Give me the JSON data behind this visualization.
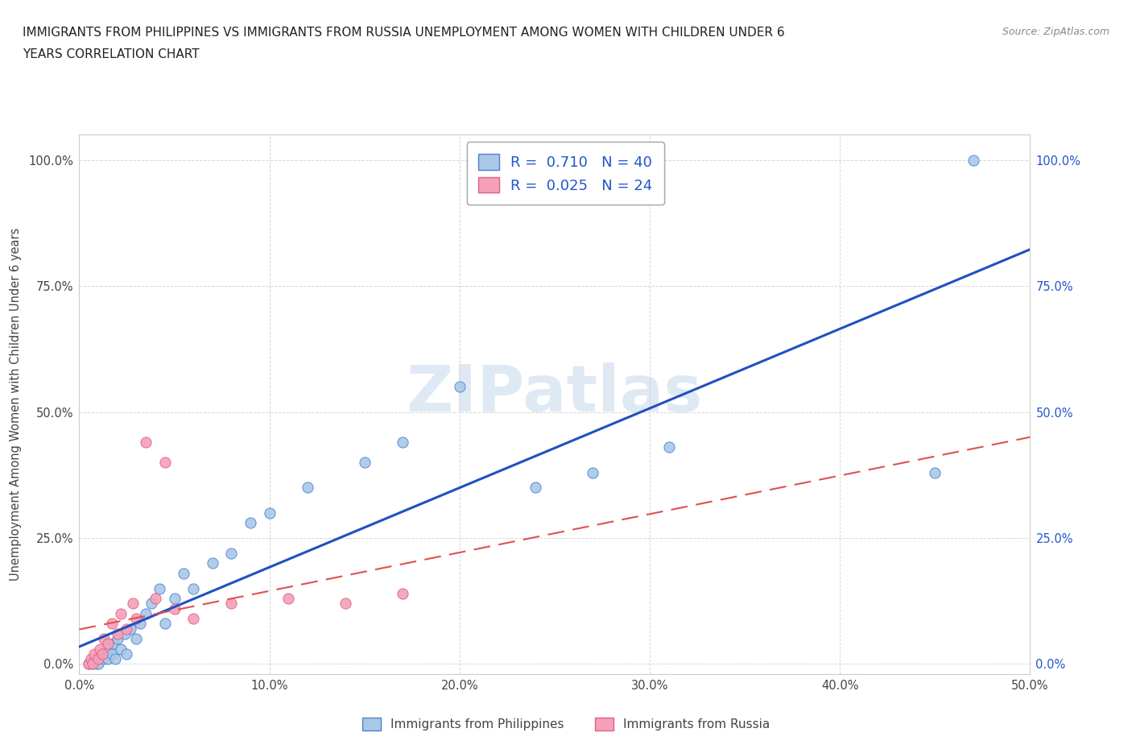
{
  "title_line1": "IMMIGRANTS FROM PHILIPPINES VS IMMIGRANTS FROM RUSSIA UNEMPLOYMENT AMONG WOMEN WITH CHILDREN UNDER 6",
  "title_line2": "YEARS CORRELATION CHART",
  "source": "Source: ZipAtlas.com",
  "ylabel": "Unemployment Among Women with Children Under 6 years",
  "xlim": [
    0.0,
    0.5
  ],
  "ylim": [
    -0.02,
    1.05
  ],
  "ytick_labels": [
    "0.0%",
    "25.0%",
    "50.0%",
    "75.0%",
    "100.0%"
  ],
  "ytick_values": [
    0.0,
    0.25,
    0.5,
    0.75,
    1.0
  ],
  "xtick_labels": [
    "0.0%",
    "10.0%",
    "20.0%",
    "30.0%",
    "40.0%",
    "50.0%"
  ],
  "xtick_values": [
    0.0,
    0.1,
    0.2,
    0.3,
    0.4,
    0.5
  ],
  "r_philippines": 0.71,
  "n_philippines": 40,
  "r_russia": 0.025,
  "n_russia": 24,
  "philippines_color": "#a8c8e8",
  "russia_color": "#f4a0b8",
  "philippines_edge_color": "#5080d0",
  "russia_edge_color": "#e06080",
  "philippines_line_color": "#2050c0",
  "russia_line_color": "#e05050",
  "legend_text_color": "#2255cc",
  "watermark": "ZIPatlas",
  "ph_x": [
    0.005,
    0.007,
    0.008,
    0.009,
    0.01,
    0.01,
    0.012,
    0.013,
    0.015,
    0.015,
    0.017,
    0.018,
    0.019,
    0.02,
    0.022,
    0.024,
    0.025,
    0.027,
    0.03,
    0.032,
    0.035,
    0.038,
    0.042,
    0.045,
    0.05,
    0.055,
    0.06,
    0.07,
    0.08,
    0.09,
    0.1,
    0.12,
    0.15,
    0.17,
    0.2,
    0.24,
    0.27,
    0.31,
    0.45,
    0.47
  ],
  "ph_y": [
    0.0,
    0.0,
    0.01,
    0.0,
    0.01,
    0.0,
    0.02,
    0.01,
    0.03,
    0.01,
    0.02,
    0.04,
    0.01,
    0.05,
    0.03,
    0.06,
    0.02,
    0.07,
    0.05,
    0.08,
    0.1,
    0.12,
    0.15,
    0.08,
    0.13,
    0.18,
    0.15,
    0.2,
    0.22,
    0.28,
    0.3,
    0.35,
    0.4,
    0.44,
    0.55,
    0.35,
    0.38,
    0.43,
    0.38,
    1.0
  ],
  "ru_x": [
    0.005,
    0.006,
    0.007,
    0.008,
    0.01,
    0.011,
    0.012,
    0.013,
    0.015,
    0.017,
    0.02,
    0.022,
    0.025,
    0.028,
    0.03,
    0.035,
    0.04,
    0.045,
    0.05,
    0.06,
    0.08,
    0.11,
    0.14,
    0.17
  ],
  "ru_y": [
    0.0,
    0.01,
    0.0,
    0.02,
    0.01,
    0.03,
    0.02,
    0.05,
    0.04,
    0.08,
    0.06,
    0.1,
    0.07,
    0.12,
    0.09,
    0.44,
    0.13,
    0.4,
    0.11,
    0.09,
    0.12,
    0.13,
    0.12,
    0.14
  ],
  "background_color": "#ffffff",
  "grid_color": "#cccccc",
  "spine_color": "#cccccc"
}
